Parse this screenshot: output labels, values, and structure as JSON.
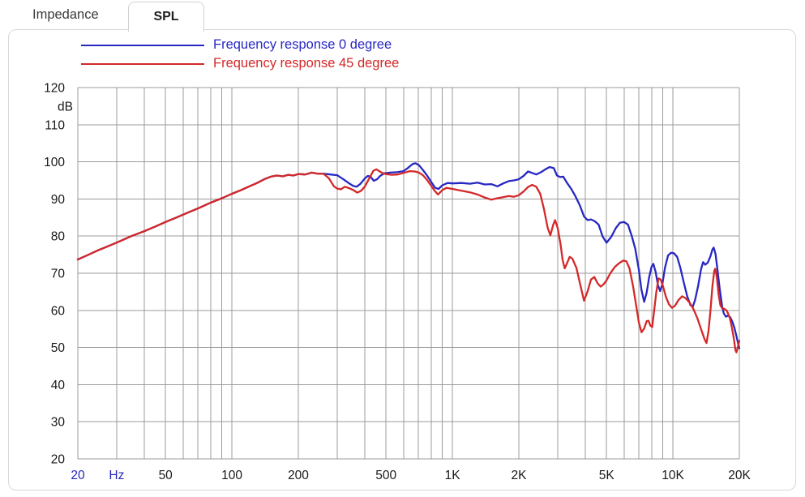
{
  "tabs": [
    {
      "label": "Impedance",
      "active": false
    },
    {
      "label": "SPL",
      "active": true
    }
  ],
  "legend": [
    {
      "label": "Frequency response 0 degree",
      "color": "#2727c3"
    },
    {
      "label": "Frequency response 45 degree",
      "color": "#d42828"
    }
  ],
  "chart_data": {
    "type": "line",
    "x_scale": "log",
    "xlim": [
      20,
      20000
    ],
    "ylim": [
      20,
      120
    ],
    "ylabel": "dB",
    "xlabel": "Hz",
    "grid": true,
    "legend_position": "top-left",
    "y_ticks": [
      120,
      110,
      100,
      90,
      80,
      70,
      60,
      50,
      40,
      30,
      20
    ],
    "x_ticks": [
      {
        "label": "20",
        "f": 20,
        "accent": true
      },
      {
        "label": "Hz",
        "f": 30,
        "accent": true
      },
      {
        "label": "50",
        "f": 50,
        "accent": false
      },
      {
        "label": "100",
        "f": 100,
        "accent": false
      },
      {
        "label": "200",
        "f": 200,
        "accent": false
      },
      {
        "label": "500",
        "f": 500,
        "accent": false
      },
      {
        "label": "1K",
        "f": 1000,
        "accent": false
      },
      {
        "label": "2K",
        "f": 2000,
        "accent": false
      },
      {
        "label": "5K",
        "f": 5000,
        "accent": false
      },
      {
        "label": "10K",
        "f": 10000,
        "accent": false
      },
      {
        "label": "20K",
        "f": 20000,
        "accent": false
      }
    ],
    "series": [
      {
        "name": "Frequency response 0 degree",
        "data_name": "curve-0-degree",
        "color": "#2727c3",
        "points": [
          [
            20,
            73.7
          ],
          [
            22,
            74.8
          ],
          [
            25,
            76.3
          ],
          [
            28,
            77.5
          ],
          [
            31,
            78.6
          ],
          [
            35,
            80.0
          ],
          [
            40,
            81.3
          ],
          [
            45,
            82.6
          ],
          [
            50,
            83.8
          ],
          [
            56,
            85.0
          ],
          [
            63,
            86.3
          ],
          [
            71,
            87.6
          ],
          [
            80,
            89.0
          ],
          [
            90,
            90.2
          ],
          [
            100,
            91.4
          ],
          [
            110,
            92.4
          ],
          [
            120,
            93.4
          ],
          [
            130,
            94.3
          ],
          [
            140,
            95.3
          ],
          [
            150,
            96.0
          ],
          [
            160,
            96.3
          ],
          [
            170,
            96.1
          ],
          [
            180,
            96.5
          ],
          [
            190,
            96.3
          ],
          [
            200,
            96.7
          ],
          [
            215,
            96.6
          ],
          [
            230,
            97.1
          ],
          [
            245,
            96.8
          ],
          [
            260,
            96.8
          ],
          [
            280,
            96.6
          ],
          [
            300,
            96.4
          ],
          [
            320,
            95.3
          ],
          [
            340,
            94.2
          ],
          [
            355,
            93.5
          ],
          [
            368,
            93.3
          ],
          [
            383,
            94.1
          ],
          [
            400,
            95.5
          ],
          [
            413,
            96.2
          ],
          [
            425,
            96.0
          ],
          [
            440,
            94.9
          ],
          [
            455,
            95.3
          ],
          [
            470,
            96.2
          ],
          [
            490,
            96.9
          ],
          [
            520,
            97.1
          ],
          [
            560,
            97.2
          ],
          [
            600,
            97.5
          ],
          [
            630,
            98.4
          ],
          [
            660,
            99.4
          ],
          [
            680,
            99.6
          ],
          [
            705,
            99.1
          ],
          [
            735,
            97.8
          ],
          [
            765,
            96.4
          ],
          [
            800,
            94.6
          ],
          [
            835,
            93.0
          ],
          [
            865,
            92.7
          ],
          [
            900,
            93.7
          ],
          [
            950,
            94.3
          ],
          [
            1000,
            94.2
          ],
          [
            1100,
            94.3
          ],
          [
            1200,
            94.1
          ],
          [
            1300,
            94.4
          ],
          [
            1400,
            93.9
          ],
          [
            1500,
            94.0
          ],
          [
            1600,
            93.4
          ],
          [
            1700,
            94.2
          ],
          [
            1800,
            94.8
          ],
          [
            1900,
            95.0
          ],
          [
            2000,
            95.3
          ],
          [
            2100,
            96.2
          ],
          [
            2200,
            97.4
          ],
          [
            2300,
            97.0
          ],
          [
            2400,
            96.6
          ],
          [
            2520,
            97.2
          ],
          [
            2640,
            98.0
          ],
          [
            2760,
            98.6
          ],
          [
            2880,
            98.3
          ],
          [
            2980,
            96.3
          ],
          [
            3080,
            95.9
          ],
          [
            3180,
            96.0
          ],
          [
            3300,
            94.4
          ],
          [
            3450,
            92.8
          ],
          [
            3600,
            90.9
          ],
          [
            3780,
            88.3
          ],
          [
            3950,
            85.3
          ],
          [
            4100,
            84.3
          ],
          [
            4250,
            84.5
          ],
          [
            4420,
            84.0
          ],
          [
            4600,
            83.1
          ],
          [
            4800,
            79.9
          ],
          [
            5000,
            78.2
          ],
          [
            5250,
            79.8
          ],
          [
            5500,
            82.1
          ],
          [
            5750,
            83.6
          ],
          [
            6000,
            83.8
          ],
          [
            6250,
            83.1
          ],
          [
            6500,
            80.1
          ],
          [
            6750,
            76.5
          ],
          [
            7000,
            71.0
          ],
          [
            7200,
            65.5
          ],
          [
            7400,
            62.3
          ],
          [
            7600,
            64.8
          ],
          [
            7800,
            69.0
          ],
          [
            8000,
            71.8
          ],
          [
            8150,
            72.5
          ],
          [
            8350,
            70.3
          ],
          [
            8550,
            66.8
          ],
          [
            8750,
            65.2
          ],
          [
            8950,
            67.0
          ],
          [
            9200,
            71.5
          ],
          [
            9500,
            74.8
          ],
          [
            9800,
            75.5
          ],
          [
            10100,
            75.4
          ],
          [
            10450,
            74.4
          ],
          [
            10800,
            71.5
          ],
          [
            11200,
            67.5
          ],
          [
            11600,
            63.8
          ],
          [
            12000,
            61.4
          ],
          [
            12300,
            61.0
          ],
          [
            12600,
            62.8
          ],
          [
            13000,
            66.5
          ],
          [
            13400,
            71.0
          ],
          [
            13700,
            73.0
          ],
          [
            14000,
            72.3
          ],
          [
            14400,
            72.9
          ],
          [
            14800,
            74.6
          ],
          [
            15100,
            76.4
          ],
          [
            15300,
            76.9
          ],
          [
            15600,
            75.2
          ],
          [
            15900,
            71.2
          ],
          [
            16300,
            65.8
          ],
          [
            16700,
            61.2
          ],
          [
            17000,
            59.2
          ],
          [
            17400,
            58.3
          ],
          [
            17800,
            58.6
          ],
          [
            18200,
            58.1
          ],
          [
            18600,
            56.9
          ],
          [
            19000,
            55.3
          ],
          [
            19400,
            53.1
          ],
          [
            19700,
            51.4
          ],
          [
            20000,
            49.8
          ]
        ]
      },
      {
        "name": "Frequency response 45 degree",
        "data_name": "curve-45-degree",
        "color": "#d42828",
        "points": [
          [
            20,
            73.7
          ],
          [
            22,
            74.8
          ],
          [
            25,
            76.3
          ],
          [
            28,
            77.5
          ],
          [
            31,
            78.6
          ],
          [
            35,
            80.0
          ],
          [
            40,
            81.3
          ],
          [
            45,
            82.6
          ],
          [
            50,
            83.8
          ],
          [
            56,
            85.0
          ],
          [
            63,
            86.3
          ],
          [
            71,
            87.6
          ],
          [
            80,
            89.0
          ],
          [
            90,
            90.2
          ],
          [
            100,
            91.4
          ],
          [
            110,
            92.4
          ],
          [
            120,
            93.4
          ],
          [
            130,
            94.3
          ],
          [
            140,
            95.3
          ],
          [
            150,
            96.0
          ],
          [
            160,
            96.3
          ],
          [
            170,
            96.1
          ],
          [
            180,
            96.5
          ],
          [
            190,
            96.3
          ],
          [
            200,
            96.7
          ],
          [
            215,
            96.6
          ],
          [
            230,
            97.1
          ],
          [
            245,
            96.8
          ],
          [
            260,
            96.8
          ],
          [
            275,
            95.6
          ],
          [
            290,
            93.4
          ],
          [
            300,
            92.8
          ],
          [
            312,
            92.6
          ],
          [
            325,
            93.3
          ],
          [
            340,
            92.9
          ],
          [
            355,
            92.4
          ],
          [
            370,
            91.7
          ],
          [
            385,
            92.2
          ],
          [
            400,
            93.3
          ],
          [
            420,
            95.6
          ],
          [
            438,
            97.6
          ],
          [
            452,
            98.0
          ],
          [
            468,
            97.4
          ],
          [
            485,
            96.9
          ],
          [
            500,
            96.7
          ],
          [
            530,
            96.5
          ],
          [
            565,
            96.6
          ],
          [
            600,
            97.0
          ],
          [
            640,
            97.5
          ],
          [
            675,
            97.4
          ],
          [
            705,
            97.1
          ],
          [
            735,
            96.4
          ],
          [
            765,
            95.2
          ],
          [
            800,
            93.6
          ],
          [
            830,
            92.2
          ],
          [
            860,
            91.2
          ],
          [
            900,
            92.4
          ],
          [
            940,
            93.0
          ],
          [
            1000,
            92.7
          ],
          [
            1100,
            92.2
          ],
          [
            1200,
            91.8
          ],
          [
            1300,
            91.2
          ],
          [
            1400,
            90.4
          ],
          [
            1500,
            89.8
          ],
          [
            1600,
            90.2
          ],
          [
            1700,
            90.5
          ],
          [
            1800,
            90.8
          ],
          [
            1900,
            90.6
          ],
          [
            2000,
            91.0
          ],
          [
            2100,
            92.0
          ],
          [
            2200,
            93.2
          ],
          [
            2300,
            93.8
          ],
          [
            2400,
            93.3
          ],
          [
            2500,
            91.4
          ],
          [
            2600,
            87.3
          ],
          [
            2700,
            82.3
          ],
          [
            2780,
            80.2
          ],
          [
            2860,
            83.0
          ],
          [
            2920,
            84.3
          ],
          [
            3000,
            82.2
          ],
          [
            3090,
            77.9
          ],
          [
            3160,
            73.6
          ],
          [
            3230,
            71.3
          ],
          [
            3310,
            72.7
          ],
          [
            3400,
            74.4
          ],
          [
            3500,
            73.9
          ],
          [
            3650,
            71.4
          ],
          [
            3800,
            66.9
          ],
          [
            3950,
            62.6
          ],
          [
            4100,
            65.1
          ],
          [
            4250,
            68.3
          ],
          [
            4400,
            69.0
          ],
          [
            4550,
            67.3
          ],
          [
            4700,
            66.4
          ],
          [
            4850,
            67.0
          ],
          [
            5000,
            68.1
          ],
          [
            5200,
            70.0
          ],
          [
            5450,
            71.7
          ],
          [
            5700,
            72.7
          ],
          [
            5950,
            73.4
          ],
          [
            6150,
            73.2
          ],
          [
            6350,
            71.3
          ],
          [
            6600,
            66.4
          ],
          [
            6800,
            61.5
          ],
          [
            7000,
            56.8
          ],
          [
            7200,
            54.1
          ],
          [
            7400,
            55.1
          ],
          [
            7600,
            57.1
          ],
          [
            7750,
            57.2
          ],
          [
            7900,
            55.9
          ],
          [
            8050,
            55.5
          ],
          [
            8200,
            59.5
          ],
          [
            8400,
            64.8
          ],
          [
            8600,
            68.6
          ],
          [
            8800,
            68.3
          ],
          [
            9000,
            66.6
          ],
          [
            9300,
            63.6
          ],
          [
            9600,
            61.6
          ],
          [
            9900,
            60.7
          ],
          [
            10200,
            61.2
          ],
          [
            10600,
            62.8
          ],
          [
            11000,
            63.8
          ],
          [
            11400,
            63.3
          ],
          [
            11900,
            62.1
          ],
          [
            12400,
            60.3
          ],
          [
            12900,
            57.9
          ],
          [
            13400,
            55.0
          ],
          [
            13900,
            52.3
          ],
          [
            14200,
            51.2
          ],
          [
            14500,
            54.5
          ],
          [
            14800,
            60.0
          ],
          [
            15100,
            66.5
          ],
          [
            15400,
            70.7
          ],
          [
            15550,
            71.2
          ],
          [
            15800,
            68.9
          ],
          [
            16100,
            64.3
          ],
          [
            16400,
            61.4
          ],
          [
            16700,
            60.6
          ],
          [
            17100,
            60.4
          ],
          [
            17500,
            60.0
          ],
          [
            17800,
            59.1
          ],
          [
            18100,
            58.0
          ],
          [
            18500,
            55.4
          ],
          [
            18900,
            52.3
          ],
          [
            19200,
            49.3
          ],
          [
            19400,
            48.7
          ],
          [
            19650,
            49.9
          ],
          [
            20000,
            51.8
          ]
        ]
      }
    ]
  }
}
